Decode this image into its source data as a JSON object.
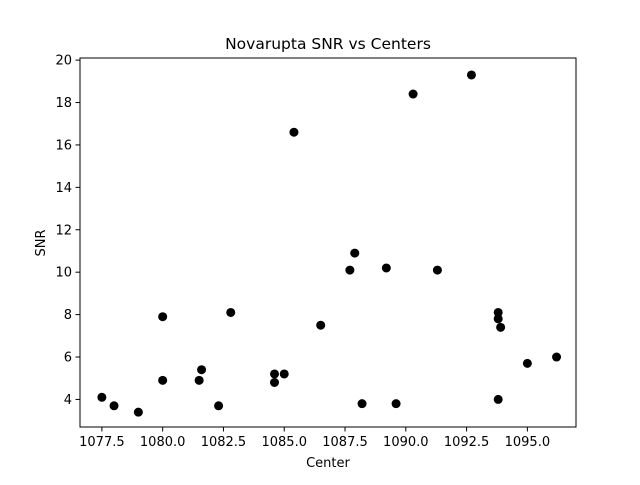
{
  "chart_data": {
    "type": "scatter",
    "title": "Novarupta SNR vs Centers",
    "xlabel": "Center",
    "ylabel": "SNR",
    "xlim": [
      1076.6,
      1097.0
    ],
    "ylim": [
      2.7,
      20.1
    ],
    "xticks": [
      1077.5,
      1080.0,
      1082.5,
      1085.0,
      1087.5,
      1090.0,
      1092.5,
      1095.0
    ],
    "xtick_labels": [
      "1077.5",
      "1080.0",
      "1082.5",
      "1085.0",
      "1087.5",
      "1090.0",
      "1092.5",
      "1095.0"
    ],
    "yticks": [
      4,
      6,
      8,
      10,
      12,
      14,
      16,
      18,
      20
    ],
    "ytick_labels": [
      "4",
      "6",
      "8",
      "10",
      "12",
      "14",
      "16",
      "18",
      "20"
    ],
    "grid": false,
    "legend": "none",
    "marker_color": "#000000",
    "x": [
      1077.5,
      1078.0,
      1079.0,
      1080.0,
      1080.0,
      1081.5,
      1081.6,
      1082.3,
      1082.8,
      1084.6,
      1084.6,
      1085.0,
      1085.4,
      1086.5,
      1087.7,
      1087.9,
      1088.2,
      1089.2,
      1089.6,
      1090.3,
      1091.3,
      1092.7,
      1093.8,
      1093.8,
      1093.8,
      1093.9,
      1095.0,
      1096.2
    ],
    "y": [
      4.1,
      3.7,
      3.4,
      7.9,
      4.9,
      4.9,
      5.4,
      3.7,
      8.1,
      5.2,
      4.8,
      5.2,
      16.6,
      7.5,
      10.1,
      10.9,
      3.8,
      10.2,
      3.8,
      18.4,
      10.1,
      19.3,
      8.1,
      7.8,
      4.0,
      7.4,
      5.7,
      6.0
    ]
  }
}
